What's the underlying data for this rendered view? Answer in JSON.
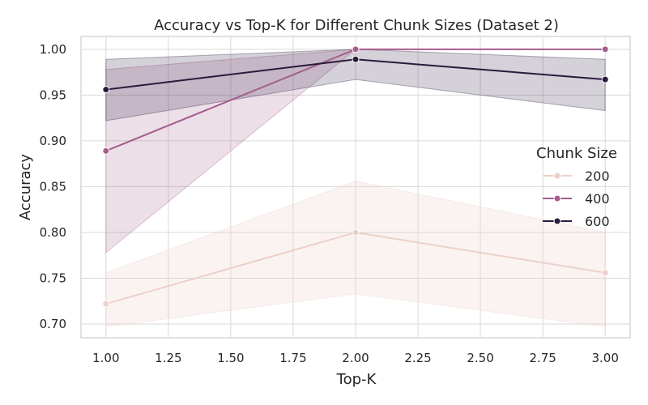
{
  "chart_data": {
    "type": "line",
    "title": "Accuracy vs Top-K for Different Chunk Sizes (Dataset 2)",
    "xlabel": "Top-K",
    "ylabel": "Accuracy",
    "xlim": [
      0.9,
      3.1
    ],
    "ylim": [
      0.685,
      1.014
    ],
    "xticks": [
      1.0,
      1.25,
      1.5,
      1.75,
      2.0,
      2.25,
      2.5,
      2.75,
      3.0
    ],
    "xtick_labels": [
      "1.00",
      "1.25",
      "1.50",
      "1.75",
      "2.00",
      "2.25",
      "2.50",
      "2.75",
      "3.00"
    ],
    "yticks": [
      0.7,
      0.75,
      0.8,
      0.85,
      0.9,
      0.95,
      1.0
    ],
    "ytick_labels": [
      "0.70",
      "0.75",
      "0.80",
      "0.85",
      "0.90",
      "0.95",
      "1.00"
    ],
    "grid": true,
    "legend": {
      "title": "Chunk Size",
      "placement": "center-right"
    },
    "series": [
      {
        "name": "200",
        "color": "#ecd0c9",
        "x": [
          1,
          2,
          3
        ],
        "y": [
          0.722,
          0.8,
          0.756
        ],
        "ci_low": [
          0.697,
          0.733,
          0.697
        ],
        "ci_high": [
          0.756,
          0.856,
          0.8
        ]
      },
      {
        "name": "400",
        "color": "#a45d8d",
        "x": [
          1,
          2,
          3
        ],
        "y": [
          0.889,
          1.0,
          1.0
        ],
        "ci_low": [
          0.778,
          1.0,
          1.0
        ],
        "ci_high": [
          0.978,
          1.0,
          1.0
        ]
      },
      {
        "name": "600",
        "color": "#2a1a3d",
        "x": [
          1,
          2,
          3
        ],
        "y": [
          0.956,
          0.989,
          0.967
        ],
        "ci_low": [
          0.922,
          0.967,
          0.933
        ],
        "ci_high": [
          0.989,
          1.0,
          0.989
        ]
      }
    ]
  }
}
